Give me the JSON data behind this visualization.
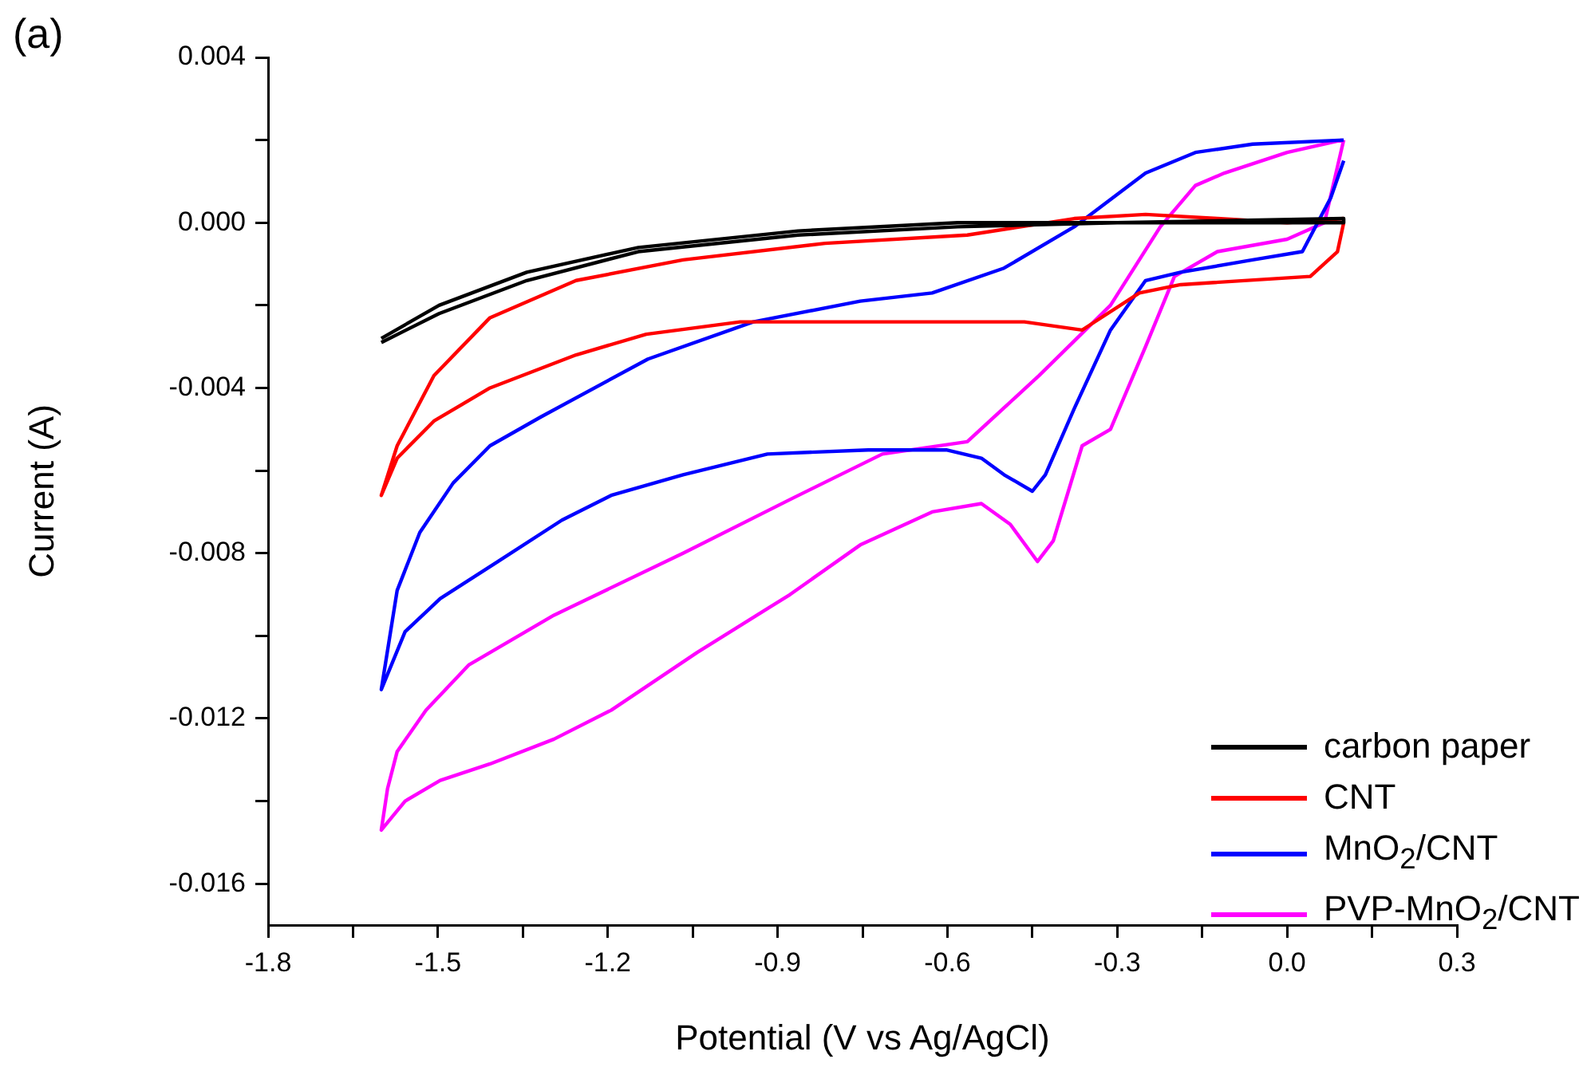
{
  "chart_data": {
    "type": "line",
    "title": "(a)",
    "xlabel": "Potential (V vs Ag/AgCl)",
    "ylabel": "Current (A)",
    "xlim": [
      -1.8,
      0.3
    ],
    "ylim": [
      -0.017,
      0.004
    ],
    "xticks": [
      -1.8,
      {
        "value": -1.65,
        "label": null
      },
      -1.5,
      {
        "value": -1.35,
        "label": null
      },
      -1.2,
      {
        "value": -1.05,
        "label": null
      },
      -0.9,
      {
        "value": -0.75,
        "label": null
      },
      -0.6,
      {
        "value": -0.45,
        "label": null
      },
      -0.3,
      {
        "value": -0.15,
        "label": null
      },
      {
        "value": 0,
        "label": "0.0"
      },
      {
        "value": 0.15,
        "label": null
      },
      0.3
    ],
    "yticks": [
      0.004,
      {
        "value": 0.002,
        "label": null
      },
      {
        "value": 0,
        "label": "0.000"
      },
      {
        "value": -0.002,
        "label": null
      },
      -0.004,
      {
        "value": -0.006,
        "label": null
      },
      -0.008,
      {
        "value": -0.01,
        "label": null
      },
      -0.012,
      {
        "value": -0.014,
        "label": null
      },
      -0.016
    ],
    "grid": false,
    "legend": "bottom right",
    "marker": "none",
    "line_style": "solid",
    "series": [
      {
        "name": "carbon paper",
        "color": "#000000",
        "x": [
          -1.6,
          -1.498,
          -1.343,
          -1.146,
          -0.864,
          -0.582,
          -0.3,
          0.1,
          0.1,
          -0.3,
          -0.582,
          -0.864,
          -1.146,
          -1.343,
          -1.498,
          -1.6
        ],
        "values": [
          -0.0029,
          -0.0022,
          -0.0014,
          -0.0007,
          -0.0003,
          -0.0001,
          0,
          0,
          0.0001,
          0,
          0,
          -0.0002,
          -0.0006,
          -0.0012,
          -0.002,
          -0.0028
        ]
      },
      {
        "name": "CNT",
        "color": "#ff0000",
        "x": [
          0.1,
          0.089,
          0.041,
          -0.188,
          -0.261,
          -0.351,
          -0.362,
          -0.464,
          -0.565,
          -0.816,
          -0.966,
          -1.132,
          -1.256,
          -1.408,
          -1.507,
          -1.572,
          -1.6,
          -1.572,
          -1.507,
          -1.408,
          -1.256,
          -1.067,
          -0.816,
          -0.565,
          -0.376,
          -0.25,
          -0.123,
          0.0,
          0.1
        ],
        "values": [
          0,
          -0.0007,
          -0.0013,
          -0.0015,
          -0.0017,
          -0.0025,
          -0.0026,
          -0.0024,
          -0.0024,
          -0.0024,
          -0.0024,
          -0.0027,
          -0.0032,
          -0.004,
          -0.0048,
          -0.0057,
          -0.0066,
          -0.0054,
          -0.0037,
          -0.0023,
          -0.0014,
          -0.0009,
          -0.0005,
          -0.0003,
          0.0001,
          0.0002,
          0.0001,
          0,
          0.0001
        ]
      },
      {
        "name": "MnO$_{2}$/CNT",
        "color": "#0000ff",
        "x": [
          0.1,
          0.077,
          0.027,
          -0.061,
          -0.188,
          -0.25,
          -0.312,
          -0.376,
          -0.427,
          -0.45,
          -0.5,
          -0.54,
          -0.602,
          -0.74,
          -0.918,
          -1.067,
          -1.194,
          -1.281,
          -1.394,
          -1.496,
          -1.558,
          -1.6,
          -1.572,
          -1.532,
          -1.473,
          -1.408,
          -1.318,
          -1.129,
          -0.943,
          -0.754,
          -0.627,
          -0.5,
          -0.376,
          -0.25,
          -0.162,
          -0.061,
          0.1
        ],
        "values": [
          0.0015,
          0.0006,
          -0.0007,
          -0.0009,
          -0.0012,
          -0.0014,
          -0.0026,
          -0.0045,
          -0.0061,
          -0.0065,
          -0.0061,
          -0.0057,
          -0.0055,
          -0.0055,
          -0.0056,
          -0.0061,
          -0.0066,
          -0.0072,
          -0.0082,
          -0.0091,
          -0.0099,
          -0.0113,
          -0.0089,
          -0.0075,
          -0.0063,
          -0.0054,
          -0.0047,
          -0.0033,
          -0.0024,
          -0.0019,
          -0.0017,
          -0.0011,
          -0.0001,
          0.0012,
          0.0017,
          0.0019,
          0.002
        ]
      },
      {
        "name": "PVP-MnO$_{2}$/CNT",
        "color": "#ff00ff",
        "x": [
          0.1,
          0.066,
          0.0,
          -0.123,
          -0.199,
          -0.25,
          -0.312,
          -0.362,
          -0.413,
          -0.441,
          -0.489,
          -0.54,
          -0.627,
          -0.754,
          -0.878,
          -1.042,
          -1.194,
          -1.295,
          -1.408,
          -1.496,
          -1.558,
          -1.6,
          -1.589,
          -1.572,
          -1.521,
          -1.445,
          -1.295,
          -1.067,
          -0.878,
          -0.715,
          -0.565,
          -0.438,
          -0.312,
          -0.224,
          -0.162,
          -0.111,
          0.0,
          0.097
        ],
        "values": [
          0.002,
          0,
          -0.0004,
          -0.0007,
          -0.0013,
          -0.003,
          -0.005,
          -0.0054,
          -0.0077,
          -0.0082,
          -0.0073,
          -0.0068,
          -0.007,
          -0.0078,
          -0.009,
          -0.0104,
          -0.0118,
          -0.0125,
          -0.0131,
          -0.0135,
          -0.014,
          -0.0147,
          -0.0137,
          -0.0128,
          -0.0118,
          -0.0107,
          -0.0095,
          -0.008,
          -0.0067,
          -0.0056,
          -0.0053,
          -0.0037,
          -0.002,
          -0.0001,
          0.0009,
          0.0012,
          0.0017,
          0.002
        ]
      }
    ]
  }
}
